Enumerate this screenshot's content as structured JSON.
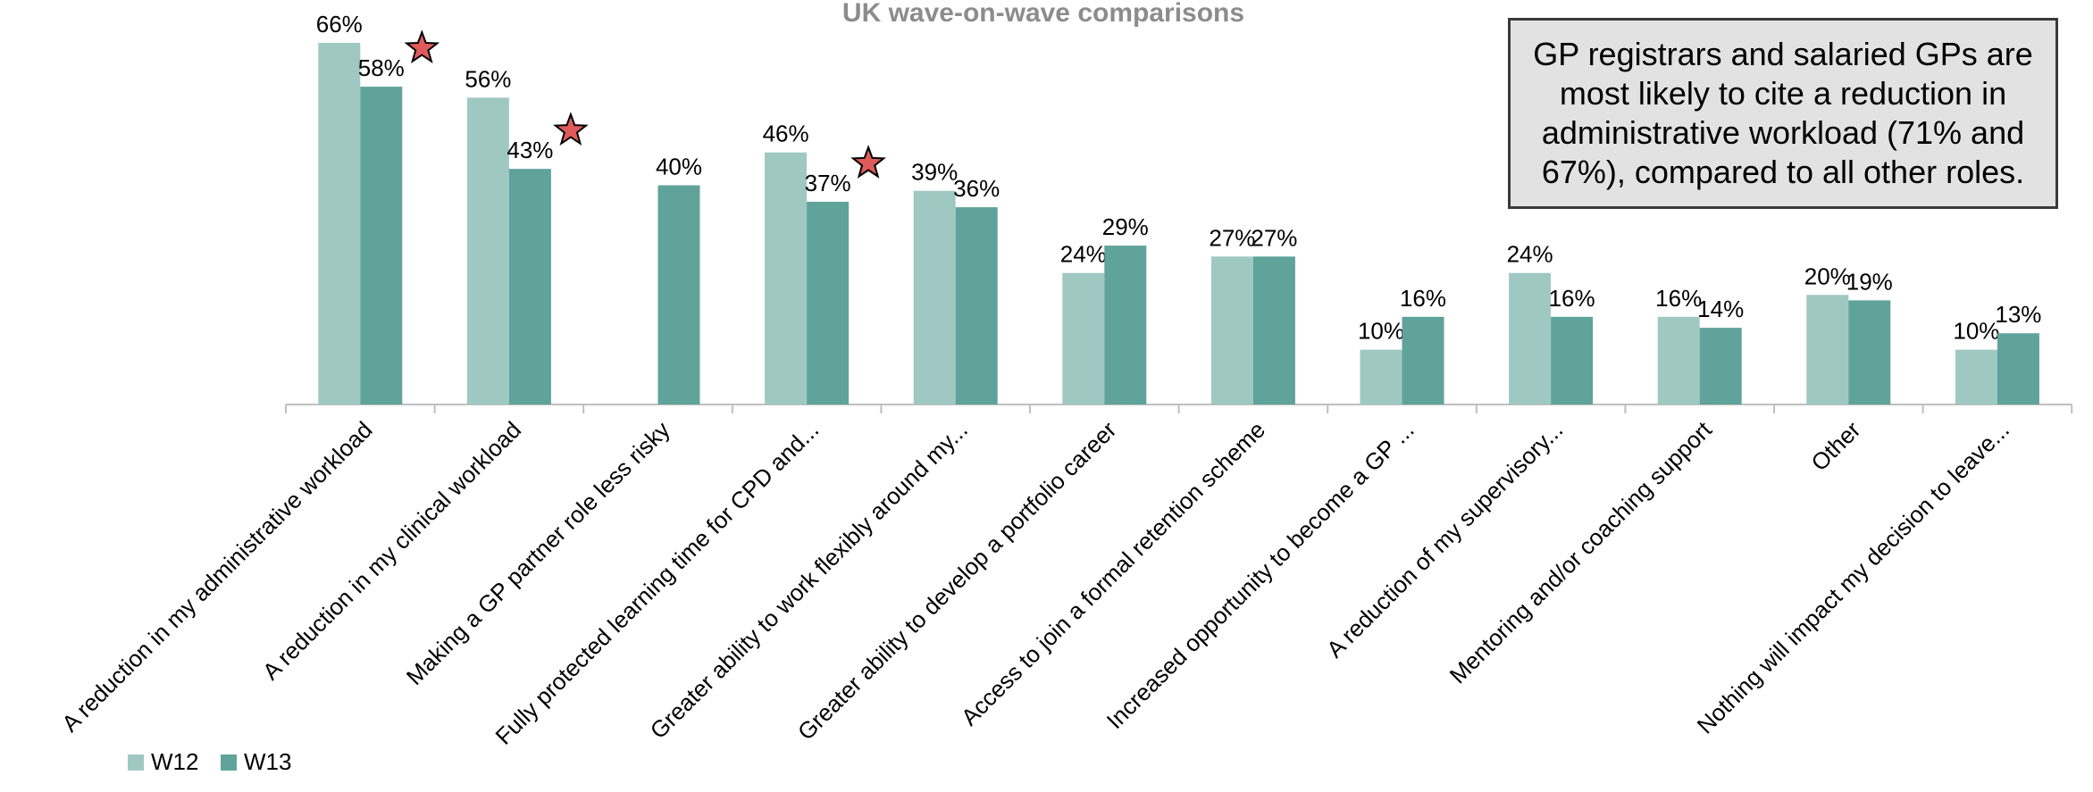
{
  "chart_data": {
    "type": "bar",
    "title": "UK wave-on-wave comparisons",
    "categories": [
      "A reduction in my administrative workload",
      "A reduction in my clinical workload",
      "Making a GP partner role less risky",
      "Fully protected learning time for CPD and...",
      "Greater ability to work flexibly around my...",
      "Greater ability to develop a portfolio career",
      "Access to join a formal retention scheme",
      "Increased opportunity to become a GP ...",
      "A reduction of my supervisory...",
      "Mentoring and/or coaching support",
      "Other",
      "Nothing will impact my decision to leave..."
    ],
    "series": [
      {
        "name": "W12",
        "color": "#a0c8c3",
        "values": [
          66,
          56,
          null,
          46,
          39,
          24,
          27,
          10,
          24,
          16,
          20,
          10
        ]
      },
      {
        "name": "W13",
        "color": "#5fa39a",
        "values": [
          58,
          43,
          40,
          37,
          36,
          29,
          27,
          16,
          16,
          14,
          19,
          13
        ]
      }
    ],
    "value_suffix": "%",
    "significance_markers": [
      0,
      1,
      3
    ],
    "marker_color": "#e05a5a",
    "ylim": [
      0,
      72
    ],
    "grid": false,
    "legend_position": "bottom-left",
    "xlabel": "",
    "ylabel": ""
  },
  "callout": {
    "text": "GP registrars and salaried GPs are most likely to cite a reduction in administrative workload (71% and 67%), compared to all other roles."
  }
}
